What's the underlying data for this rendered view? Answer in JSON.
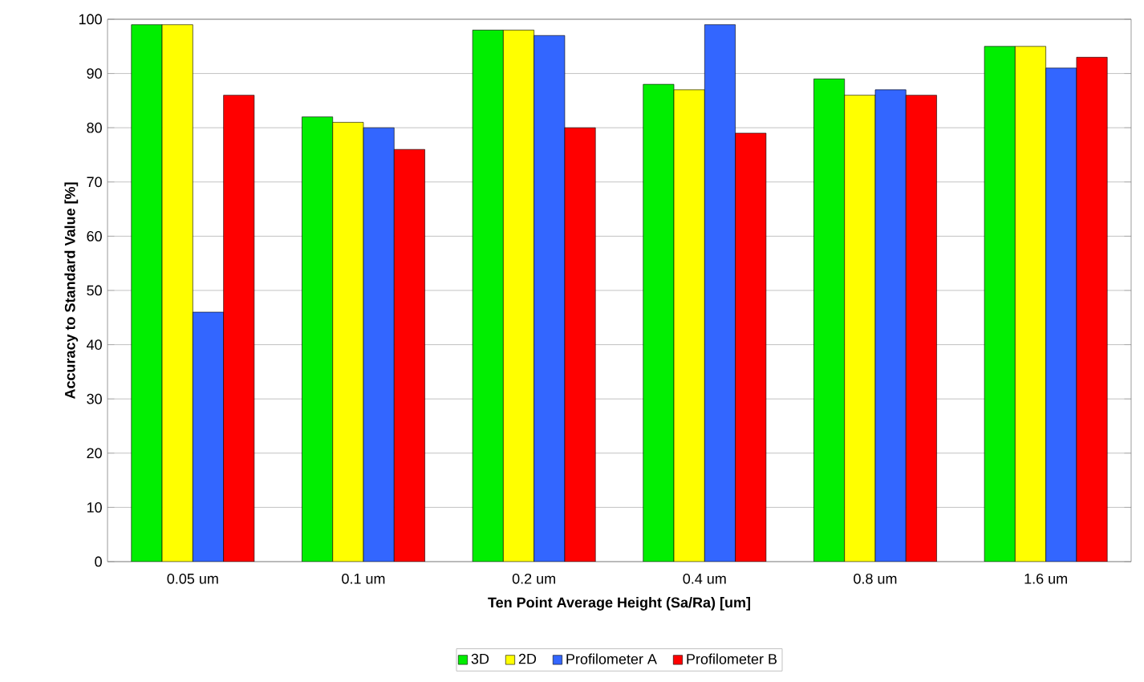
{
  "chart_data": {
    "type": "bar",
    "xlabel": "Ten Point Average Height (Sa/Ra) [um]",
    "ylabel": "Accuracy to Standard Value [%]",
    "categories": [
      "0.05 um",
      "0.1 um",
      "0.2 um",
      "0.4 um",
      "0.8 um",
      "1.6 um"
    ],
    "series": [
      {
        "name": "3D",
        "color": "#00ee00",
        "values": [
          99,
          82,
          98,
          88,
          89,
          95
        ]
      },
      {
        "name": "2D",
        "color": "#ffff00",
        "values": [
          99,
          81,
          98,
          87,
          86,
          95
        ]
      },
      {
        "name": "Profilometer A",
        "color": "#3366ff",
        "values": [
          46,
          80,
          97,
          99,
          87,
          91
        ]
      },
      {
        "name": "Profilometer B",
        "color": "#ff0000",
        "values": [
          86,
          76,
          80,
          79,
          86,
          93
        ]
      }
    ],
    "ylim": [
      0,
      100
    ],
    "yticks": [
      0,
      10,
      20,
      30,
      40,
      50,
      60,
      70,
      80,
      90,
      100
    ],
    "grid": "y",
    "legend": "bottom"
  }
}
